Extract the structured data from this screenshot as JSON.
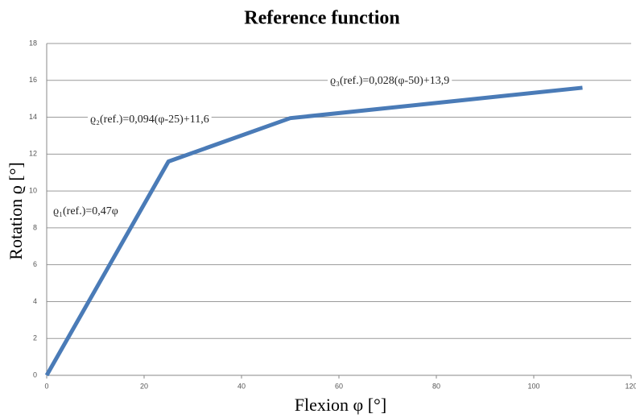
{
  "chart_data": {
    "type": "line",
    "title": "Reference function",
    "xlabel": "Flexion φ [°]",
    "ylabel": "Rotation ϱ [°]",
    "annotations": [
      "ϱ₁(ref.)=0,47φ",
      "ϱ₂(ref.)=0,094(φ-25)+11,6",
      "ϱ₃(ref.)=0,028(φ-50)+13,9"
    ],
    "series": [
      {
        "name": "Reference",
        "color": "#4a7bb7",
        "x": [
          0,
          25,
          50,
          110
        ],
        "values": [
          0,
          11.6,
          13.95,
          15.6
        ]
      }
    ],
    "xlim": [
      0,
      120
    ],
    "xticks": [
      0,
      20,
      40,
      60,
      80,
      100,
      120
    ],
    "ylim": [
      0,
      18
    ],
    "yticks": [
      0,
      2,
      4,
      6,
      8,
      10,
      12,
      14,
      16,
      18
    ],
    "grid": true
  }
}
